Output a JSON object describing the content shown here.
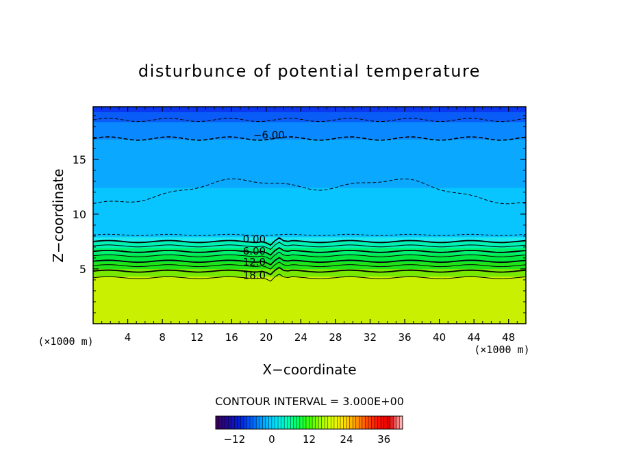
{
  "chart_data": {
    "type": "heatmap",
    "title": "disturbunce of potential temperature",
    "xlabel": "X−coordinate",
    "ylabel": "Z−coordinate",
    "x_unit_left": "(×1000 m)",
    "x_unit_right": "(×1000 m)",
    "xlim": [
      0,
      50
    ],
    "ylim": [
      0,
      19.8
    ],
    "x_ticks": [
      4,
      8,
      12,
      16,
      20,
      24,
      28,
      32,
      36,
      40,
      44,
      48
    ],
    "y_ticks": [
      5,
      10,
      15
    ],
    "contour_interval_label": "CONTOUR INTERVAL = 3.000E+00",
    "contour_labels": [
      {
        "text": "−6.00",
        "x": 18.5,
        "z": 16.9
      },
      {
        "text": "0.00",
        "x": 17.3,
        "z": 7.4
      },
      {
        "text": "6.00",
        "x": 17.3,
        "z": 6.3
      },
      {
        "text": "12.0",
        "x": 17.3,
        "z": 5.3
      },
      {
        "text": "18.0",
        "x": 17.3,
        "z": 4.1
      }
    ],
    "colorbar": {
      "range": [
        -18,
        42
      ],
      "ticks": [
        -12,
        0,
        12,
        24,
        36
      ],
      "stops": [
        "#3a0060",
        "#1a0aa0",
        "#0020e0",
        "#0060ff",
        "#00a8ff",
        "#00e0ff",
        "#00ffc0",
        "#00ff60",
        "#40ff00",
        "#a0ff00",
        "#e0ff00",
        "#ffe000",
        "#ffa000",
        "#ff5000",
        "#ff1000",
        "#e00000",
        "#ffb0b0"
      ]
    },
    "bands": [
      {
        "z_top": 19.8,
        "z_bottom": 19.3,
        "color": "#0a38f0"
      },
      {
        "z_top": 19.3,
        "z_bottom": 18.4,
        "color": "#0a5cf6"
      },
      {
        "z_top": 18.4,
        "z_bottom": 16.8,
        "color": "#0a88ff"
      },
      {
        "z_top": 16.8,
        "z_bottom": 12.4,
        "color": "#0aa8ff"
      },
      {
        "z_top": 12.4,
        "z_bottom": 7.9,
        "color": "#08c4ff"
      },
      {
        "z_top": 7.9,
        "z_bottom": 7.5,
        "color": "#20e8f0"
      },
      {
        "z_top": 7.5,
        "z_bottom": 6.9,
        "color": "#00f2b4"
      },
      {
        "z_top": 6.9,
        "z_bottom": 6.3,
        "color": "#00f070"
      },
      {
        "z_top": 6.3,
        "z_bottom": 5.6,
        "color": "#00e840"
      },
      {
        "z_top": 5.6,
        "z_bottom": 5.0,
        "color": "#20e418"
      },
      {
        "z_top": 5.0,
        "z_bottom": 4.3,
        "color": "#78e800"
      },
      {
        "z_top": 4.3,
        "z_bottom": 0.0,
        "color": "#c8f000"
      }
    ]
  }
}
